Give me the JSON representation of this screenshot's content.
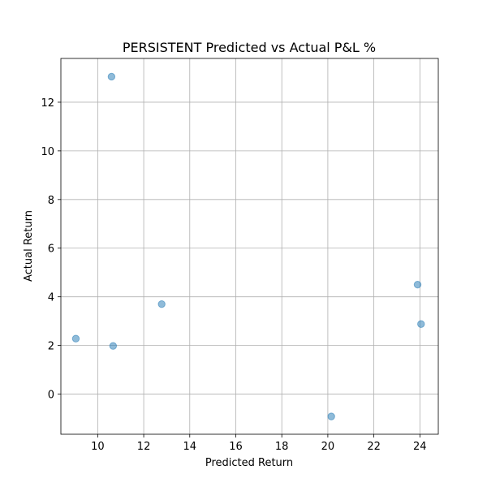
{
  "chart_data": {
    "type": "scatter",
    "title": "PERSISTENT Predicted vs Actual P&L %",
    "xlabel": "Predicted Return",
    "ylabel": "Actual Return",
    "xlim": [
      8.4,
      24.8
    ],
    "ylim": [
      -1.65,
      13.8
    ],
    "xticks": [
      10,
      12,
      14,
      16,
      18,
      20,
      22,
      24
    ],
    "yticks": [
      0,
      2,
      4,
      6,
      8,
      10,
      12
    ],
    "grid": true,
    "points": [
      {
        "x": 10.6,
        "y": 13.05
      },
      {
        "x": 9.05,
        "y": 2.28
      },
      {
        "x": 10.67,
        "y": 1.98
      },
      {
        "x": 12.78,
        "y": 3.7
      },
      {
        "x": 20.15,
        "y": -0.92
      },
      {
        "x": 23.9,
        "y": 4.5
      },
      {
        "x": 24.05,
        "y": 2.88
      }
    ],
    "color": "#1f77b4"
  }
}
